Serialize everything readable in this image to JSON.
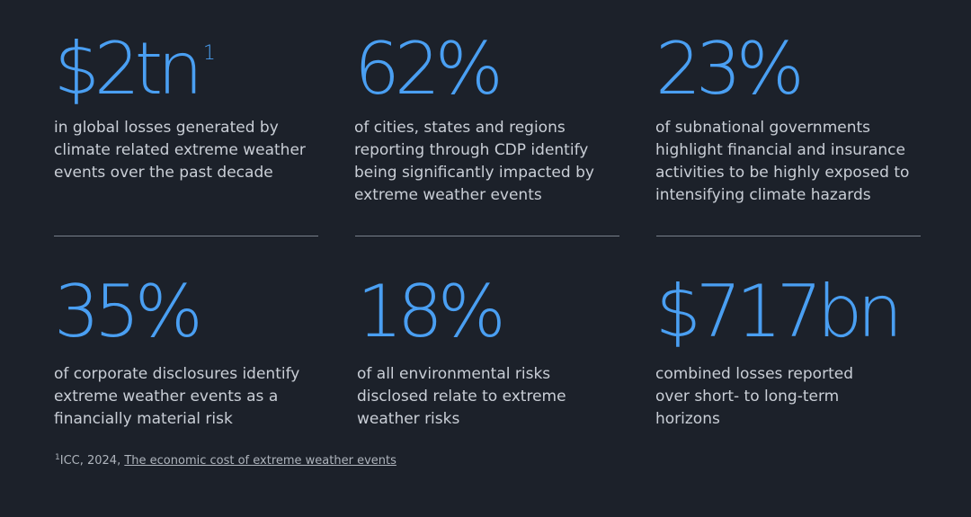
{
  "stats": [
    {
      "value": "$2tn",
      "superscript": "1",
      "description": "in global losses generated by\nclimate related extreme weather\nevents over the past decade"
    },
    {
      "value": "62%",
      "description": "of cities, states and regions\nreporting through CDP identify\nbeing significantly impacted by\nextreme weather events"
    },
    {
      "value": "23%",
      "description": "of subnational governments\nhighlight financial and insurance\nactivities to be highly exposed to\nintensifying climate hazards"
    },
    {
      "value": "35%",
      "description": "of corporate disclosures identify\nextreme weather events as a\nfinancially material risk"
    },
    {
      "value": "18%",
      "description": "of all environmental risks\ndisclosed relate to extreme\nweather risks"
    },
    {
      "value": "$717bn",
      "description": "combined losses reported\nover short- to long-term\nhorizons"
    }
  ],
  "footnote": {
    "marker": "1",
    "source": "ICC, 2024, ",
    "link_text": "The economic cost of extreme weather events"
  },
  "colors": {
    "background": "#1c212a",
    "accent": "#4a9ff2",
    "text": "#c9ced6"
  }
}
